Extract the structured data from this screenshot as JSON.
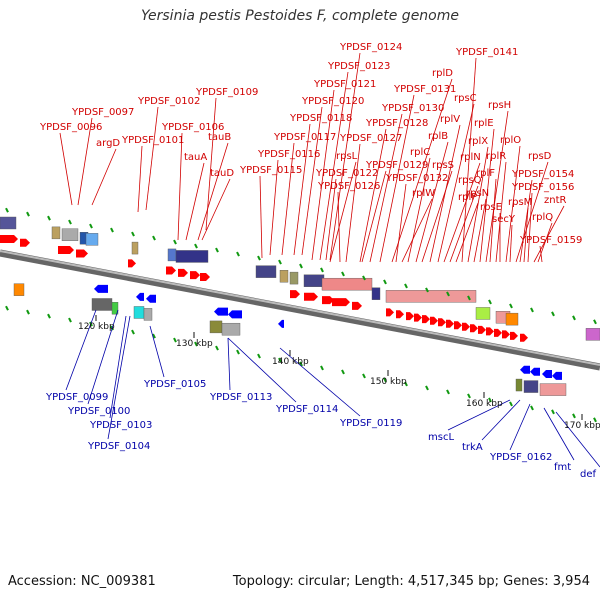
{
  "title": "Yersinia pestis Pestoides F, complete genome",
  "accession": "Accession: NC_009381",
  "summary": "Topology: circular; Length: 4,517,345 bp; Genes: 3,954",
  "colors": {
    "forward_arrow": "#ff0000",
    "reverse_arrow": "#0000ff",
    "forward_label": "#d10000",
    "reverse_label": "#0000a8",
    "backbone": "#888888",
    "tick": "#119911"
  },
  "scale_labels": [
    "120 kbp",
    "130 kbp",
    "140 kbp",
    "150 kbp",
    "160 kbp",
    "170 kbp"
  ],
  "top_labels": [
    "YPDSF_0096",
    "YPDSF_0097",
    "argD",
    "YPDSF_0101",
    "YPDSF_0102",
    "YPDSF_0106",
    "tauA",
    "tauB",
    "tauD",
    "YPDSF_0109",
    "YPDSF_0115",
    "YPDSF_0116",
    "YPDSF_0117",
    "YPDSF_0118",
    "YPDSF_0120",
    "YPDSF_0121",
    "YPDSF_0123",
    "YPDSF_0124",
    "YPDSF_0122",
    "rpsL",
    "YPDSF_0126",
    "YPDSF_0127",
    "YPDSF_0128",
    "YPDSF_0129",
    "YPDSF_0130",
    "YPDSF_0131",
    "rplD",
    "YPDSF_0132",
    "rplW",
    "rplC",
    "rplB",
    "rpsS",
    "rplV",
    "rpsC",
    "rplN",
    "rpsQ",
    "rplP",
    "YPDSF_0141",
    "rplX",
    "rpsN",
    "rplE",
    "rpsH",
    "rplF",
    "rplR",
    "rpsE",
    "rplO",
    "secY",
    "rpsD",
    "YPDSF_0154",
    "rpsM",
    "YPDSF_0156",
    "zntR",
    "rplQ",
    "YPDSF_0159"
  ],
  "bottom_labels": [
    "YPDSF_0099",
    "YPDSF_0100",
    "YPDSF_0103",
    "YPDSF_0104",
    "YPDSF_0105",
    "YPDSF_0113",
    "YPDSF_0114",
    "YPDSF_0119",
    "mscL",
    "trkA",
    "YPDSF_0162",
    "fmt",
    "def"
  ]
}
